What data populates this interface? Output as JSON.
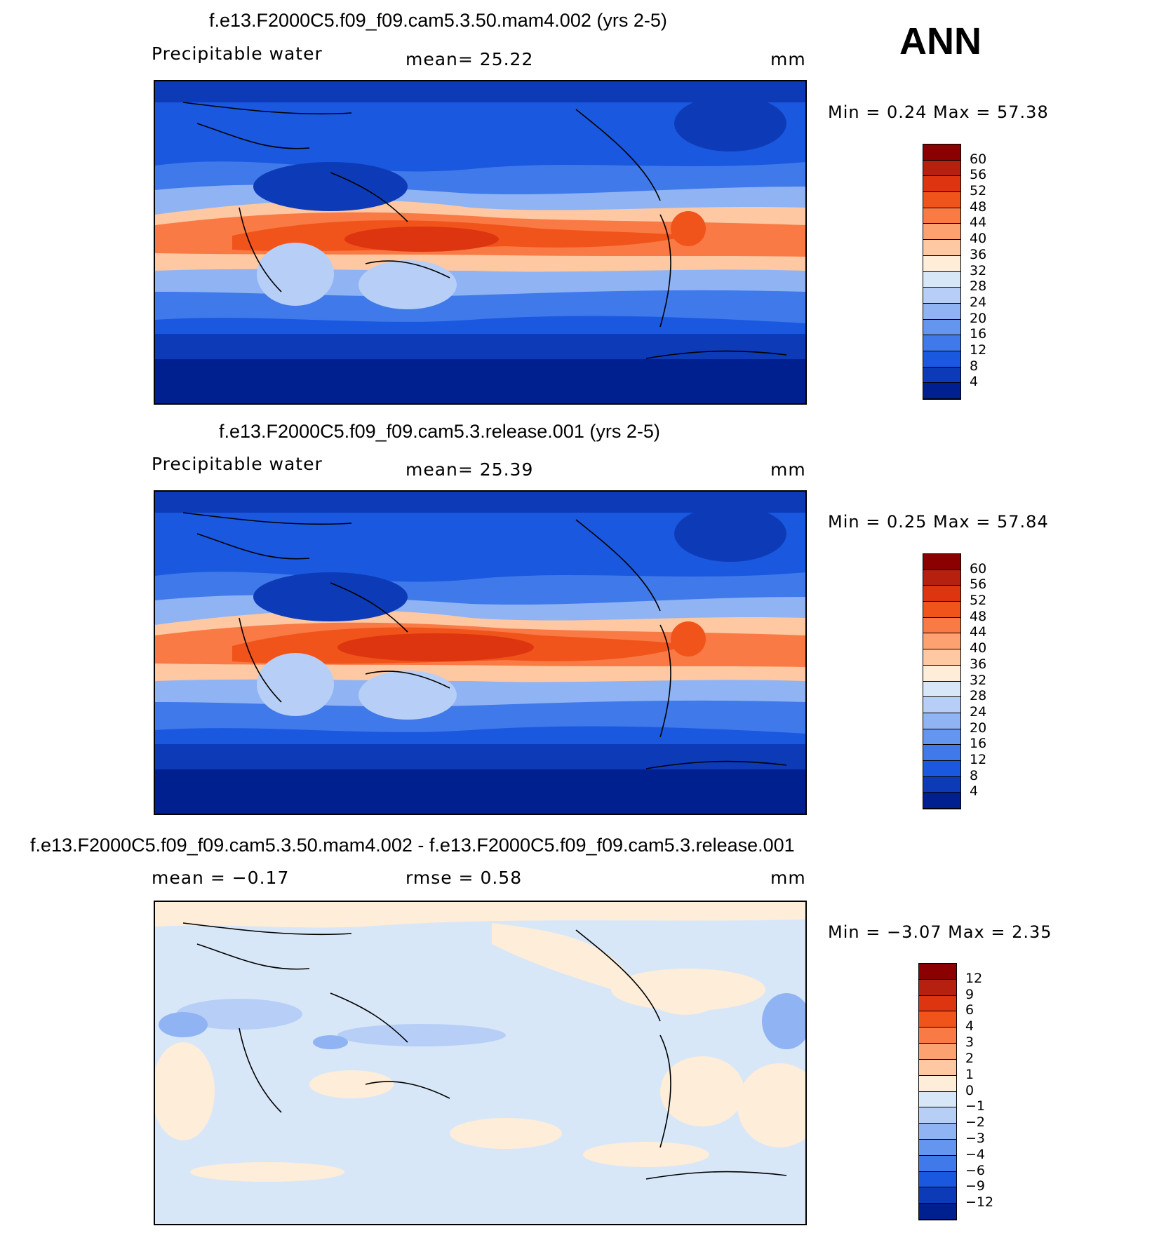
{
  "season": "ANN",
  "panels": [
    {
      "title": "f.e13.F2000C5.f09_f09.cam5.3.50.mam4.002 (yrs 2-5)",
      "left_label": "Precipitable  water",
      "center_label": "mean=   25.22",
      "units": "mm",
      "minmax": "Min  =     0.24  Max  =    57.38",
      "levels": [
        "60",
        "56",
        "52",
        "48",
        "44",
        "40",
        "36",
        "32",
        "28",
        "24",
        "20",
        "16",
        "12",
        "8",
        "4"
      ],
      "colors": [
        "#8b0000",
        "#b5200f",
        "#dc3510",
        "#f1541a",
        "#f97a45",
        "#fca170",
        "#fdc8a2",
        "#feedd9",
        "#d8e7f8",
        "#b7cff6",
        "#8fb3f3",
        "#6496f0",
        "#3f79ea",
        "#1a58df",
        "#0d3bb8",
        "#002090"
      ]
    },
    {
      "title": "f.e13.F2000C5.f09_f09.cam5.3.release.001 (yrs 2-5)",
      "left_label": "Precipitable  water",
      "center_label": "mean=   25.39",
      "units": "mm",
      "minmax": "Min  =     0.25  Max  =    57.84",
      "levels": [
        "60",
        "56",
        "52",
        "48",
        "44",
        "40",
        "36",
        "32",
        "28",
        "24",
        "20",
        "16",
        "12",
        "8",
        "4"
      ],
      "colors": [
        "#8b0000",
        "#b5200f",
        "#dc3510",
        "#f1541a",
        "#f97a45",
        "#fca170",
        "#fdc8a2",
        "#feedd9",
        "#d8e7f8",
        "#b7cff6",
        "#8fb3f3",
        "#6496f0",
        "#3f79ea",
        "#1a58df",
        "#0d3bb8",
        "#002090"
      ]
    },
    {
      "title": "f.e13.F2000C5.f09_f09.cam5.3.50.mam4.002 - f.e13.F2000C5.f09_f09.cam5.3.release.001",
      "left_label": "mean  =    −0.17",
      "center_label": "rmse  =     0.58",
      "units": "mm",
      "minmax": "Min  =   −3.07  Max  =     2.35",
      "levels": [
        "12",
        "9",
        "6",
        "4",
        "3",
        "2",
        "1",
        "0",
        "−1",
        "−2",
        "−3",
        "−4",
        "−6",
        "−9",
        "−12"
      ],
      "colors": [
        "#8b0000",
        "#b5200f",
        "#dc3510",
        "#f1541a",
        "#f97a45",
        "#fca170",
        "#fdc8a2",
        "#feedd9",
        "#d8e7f8",
        "#b7cff6",
        "#8fb3f3",
        "#6496f0",
        "#3f79ea",
        "#1a58df",
        "#0d3bb8",
        "#002090"
      ]
    }
  ]
}
